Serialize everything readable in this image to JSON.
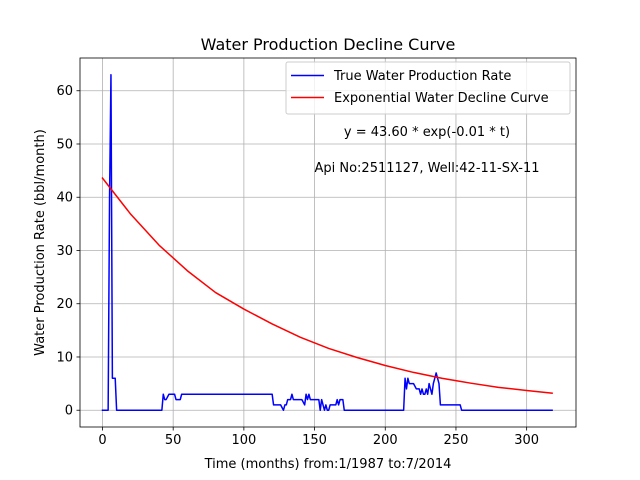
{
  "chart_data": {
    "type": "line",
    "title": "Water Production Decline Curve",
    "xlabel": "Time (months) from:1/1987 to:7/2014",
    "ylabel": "Water Production Rate (bbl/month)",
    "xlim": [
      -15.9,
      334.9
    ],
    "ylim": [
      -3.15,
      66.15
    ],
    "xticks": [
      0,
      50,
      100,
      150,
      200,
      250,
      300
    ],
    "yticks": [
      0,
      10,
      20,
      30,
      40,
      50,
      60
    ],
    "grid": true,
    "legend_position": "top-right",
    "annotations": [
      "y = 43.60 * exp(-0.01 * t)",
      "Api No:2511127, Well:42-11-SX-11"
    ],
    "series": [
      {
        "name": "True Water Production Rate",
        "color": "#0000ff",
        "x": [
          0,
          4,
          5,
          6,
          7,
          9,
          10,
          42,
          43,
          44,
          45,
          47,
          49,
          51,
          52,
          55,
          56,
          60,
          80,
          100,
          120,
          121,
          122,
          126,
          128,
          129,
          130,
          131,
          133,
          134,
          135,
          136,
          137,
          138,
          141,
          143,
          144,
          145,
          146,
          147,
          148,
          150,
          151,
          153,
          154,
          155,
          156,
          157,
          158,
          159,
          160,
          161,
          162,
          165,
          166,
          167,
          168,
          170,
          171,
          172,
          200,
          213,
          214,
          215,
          216,
          217,
          218,
          220,
          222,
          224,
          225,
          226,
          227,
          228,
          229,
          230,
          231,
          232,
          233,
          234,
          235,
          236,
          237,
          238,
          239,
          240,
          241,
          245,
          250,
          253,
          254,
          260,
          280,
          300,
          318
        ],
        "y": [
          0,
          0,
          40,
          63,
          6,
          6,
          0,
          0,
          3,
          2,
          2,
          3,
          3,
          3,
          2,
          2,
          3,
          3,
          3,
          3,
          3,
          1,
          1,
          1,
          0,
          1,
          1,
          2,
          2,
          3,
          2,
          2,
          2,
          2,
          2,
          1,
          3,
          2,
          3,
          2,
          2,
          2,
          2,
          2,
          0,
          2,
          1,
          0,
          1,
          0,
          0,
          1,
          1,
          1,
          2,
          1,
          2,
          2,
          0,
          0,
          0,
          0,
          6,
          4,
          6,
          5,
          5,
          5,
          4,
          4,
          3,
          4,
          3,
          3,
          4,
          3,
          5,
          4,
          3,
          5,
          6,
          7,
          6,
          5,
          1,
          1,
          1,
          1,
          1,
          1,
          0,
          0,
          0,
          0,
          0
        ]
      },
      {
        "name": "Exponential Water Decline Curve",
        "color": "#ff0000",
        "x": [
          0,
          20,
          40,
          60,
          80,
          100,
          120,
          140,
          160,
          180,
          200,
          220,
          240,
          260,
          280,
          300,
          318
        ],
        "y": [
          43.6,
          36.8,
          31.0,
          26.2,
          22.1,
          19.0,
          16.2,
          13.7,
          11.6,
          9.9,
          8.4,
          7.1,
          6.0,
          5.1,
          4.3,
          3.7,
          3.2
        ]
      }
    ]
  }
}
